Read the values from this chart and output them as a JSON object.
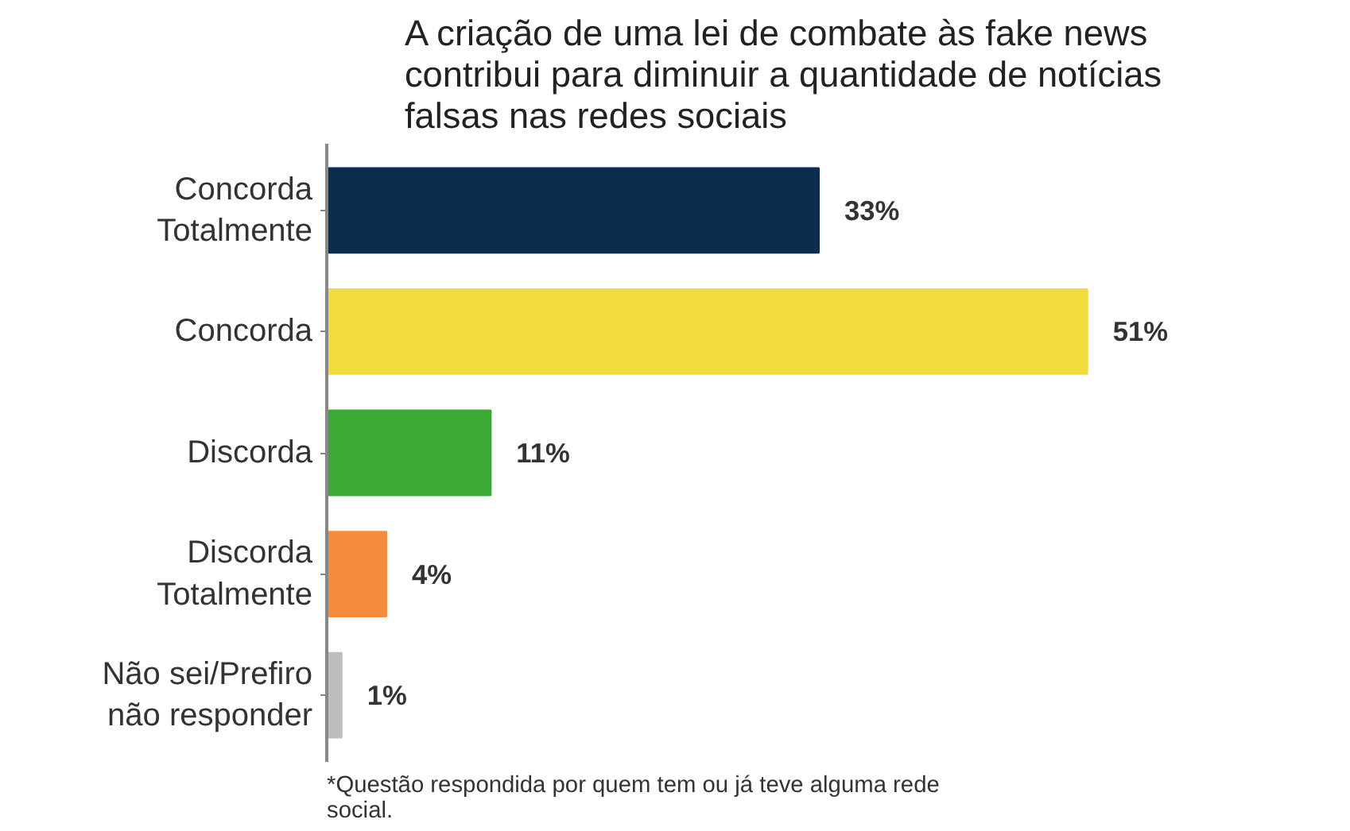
{
  "chart_data": {
    "type": "bar",
    "orientation": "horizontal",
    "title": "A criação de uma lei de combate às fake news contribui para diminuir a quantidade de notícias falsas nas redes sociais",
    "categories": [
      "Concorda Totalmente",
      "Concorda",
      "Discorda",
      "Discorda Totalmente",
      "Não sei/Prefiro não responder"
    ],
    "values": [
      33,
      51,
      11,
      4,
      1
    ],
    "colors": [
      "#0d2d4f",
      "#f2dc3c",
      "#3aaa35",
      "#f58b3c",
      "#bdbdbd"
    ],
    "value_labels": [
      "33%",
      "51%",
      "11%",
      "4%",
      "1%"
    ],
    "annotations": [
      "*Questão respondida por quem tem ou já teve alguma rede social."
    ],
    "grid": false
  }
}
